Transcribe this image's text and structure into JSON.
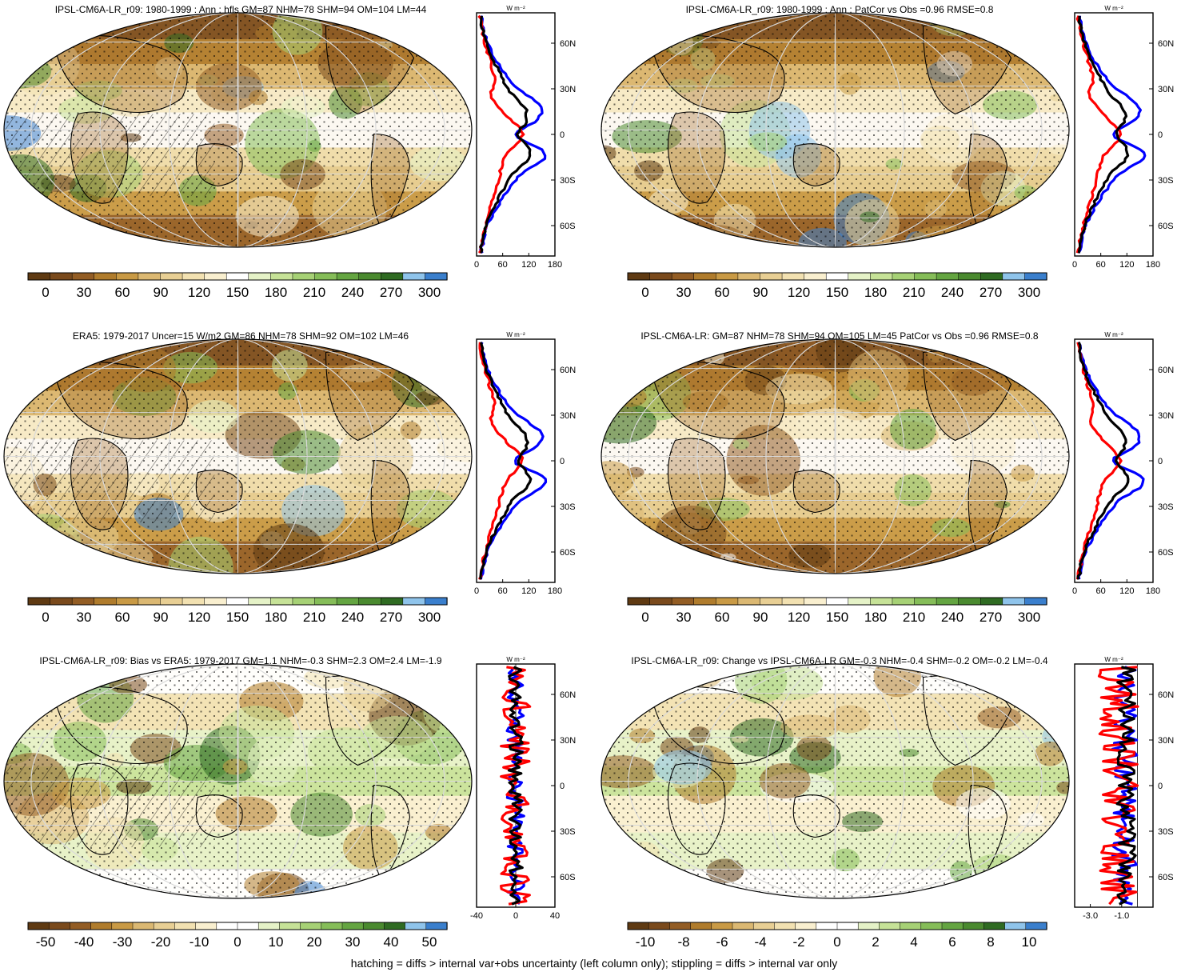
{
  "caption": "hatching = diffs > internal var+obs uncertainty (left column only); stippling = diffs > internal var only",
  "chart_data": [
    {
      "type": "map",
      "title": "IPSL-CM6A-LR_r09: 1980-1999 : Ann : hfls GM=87 NHM=78 SHM=94 OM=104 LM=44",
      "colorbar": {
        "palette": "abs",
        "ticks": [
          "0",
          "30",
          "60",
          "90",
          "120",
          "150",
          "180",
          "210",
          "240",
          "270",
          "300"
        ]
      },
      "profile": {
        "units": "W m⁻²",
        "xlim": [
          0,
          180
        ],
        "xticks": [
          "0",
          "60",
          "120",
          "180"
        ],
        "ylim": [
          -80,
          80
        ],
        "yticks": [
          "60N",
          "30N",
          "0",
          "30S",
          "60S"
        ],
        "kind": "abs"
      }
    },
    {
      "type": "map",
      "title": "IPSL-CM6A-LR_r09: 1980-1999 : Ann : PatCor vs Obs =0.96 RMSE=0.8",
      "colorbar": {
        "palette": "abs",
        "ticks": [
          "0",
          "30",
          "60",
          "90",
          "120",
          "150",
          "180",
          "210",
          "240",
          "270",
          "300"
        ]
      },
      "profile": {
        "units": "W m⁻²",
        "xlim": [
          0,
          180
        ],
        "xticks": [
          "0",
          "60",
          "120",
          "180"
        ],
        "ylim": [
          -80,
          80
        ],
        "yticks": [
          "60N",
          "30N",
          "0",
          "30S",
          "60S"
        ],
        "kind": "abs"
      }
    },
    {
      "type": "map",
      "title": "ERA5: 1979-2017 Uncer=15 W/m2 GM=86 NHM=78 SHM=92 OM=102 LM=46",
      "colorbar": {
        "palette": "abs",
        "ticks": [
          "0",
          "30",
          "60",
          "90",
          "120",
          "150",
          "180",
          "210",
          "240",
          "270",
          "300"
        ]
      },
      "profile": {
        "units": "W m⁻²",
        "xlim": [
          0,
          180
        ],
        "xticks": [
          "0",
          "60",
          "120",
          "180"
        ],
        "ylim": [
          -80,
          80
        ],
        "yticks": [
          "60N",
          "30N",
          "0",
          "30S",
          "60S"
        ],
        "kind": "abs"
      }
    },
    {
      "type": "map",
      "title": "IPSL-CM6A-LR: GM=87 NHM=78 SHM=94 OM=105 LM=45 PatCor vs Obs =0.96 RMSE=0.8",
      "colorbar": {
        "palette": "abs",
        "ticks": [
          "0",
          "30",
          "60",
          "90",
          "120",
          "150",
          "180",
          "210",
          "240",
          "270",
          "300"
        ]
      },
      "profile": {
        "units": "W m⁻²",
        "xlim": [
          0,
          180
        ],
        "xticks": [
          "0",
          "60",
          "120",
          "180"
        ],
        "ylim": [
          -80,
          80
        ],
        "yticks": [
          "60N",
          "30N",
          "0",
          "30S",
          "60S"
        ],
        "kind": "abs"
      }
    },
    {
      "type": "map",
      "title": "IPSL-CM6A-LR_r09: Bias vs ERA5: 1979-2017 GM=1.1 NHM=-0.3 SHM=2.3 OM=2.4 LM=-1.9",
      "colorbar": {
        "palette": "diff",
        "ticks": [
          "-50",
          "-40",
          "-30",
          "-20",
          "-10",
          "0",
          "10",
          "20",
          "30",
          "40",
          "50"
        ]
      },
      "profile": {
        "units": "W m⁻²",
        "xlim": [
          -40,
          40
        ],
        "xticks": [
          "-40",
          "0",
          "40"
        ],
        "ylim": [
          -80,
          80
        ],
        "yticks": [
          "60N",
          "30N",
          "0",
          "30S",
          "60S"
        ],
        "kind": "bias"
      }
    },
    {
      "type": "map",
      "title": "IPSL-CM6A-LR_r09: Change vs IPSL-CM6A-LR GM=-0.3 NHM=-0.4 SHM=-0.2 OM=-0.2 LM=-0.4",
      "colorbar": {
        "palette": "diff",
        "ticks": [
          "-10",
          "-8",
          "-6",
          "-4",
          "-2",
          "0",
          "2",
          "4",
          "6",
          "8",
          "10"
        ]
      },
      "profile": {
        "units": "W m⁻²",
        "xlim": [
          -4,
          1
        ],
        "xticks": [
          "-3.0",
          "-1.0"
        ],
        "ylim": [
          -80,
          80
        ],
        "yticks": [
          "60N",
          "30N",
          "0",
          "30S",
          "60S"
        ],
        "kind": "change"
      }
    }
  ],
  "colors": {
    "abs": [
      "#5f3a12",
      "#7a4a1c",
      "#935d24",
      "#b07c2c",
      "#c99a45",
      "#dbb872",
      "#e8cf94",
      "#f2e1b1",
      "#f9efcf",
      "#ffffff",
      "#e5f2c7",
      "#c6e297",
      "#a6d175",
      "#85bd58",
      "#64a541",
      "#4a8a2f",
      "#2f6b22",
      "#8fc4eb",
      "#3a7fcd"
    ],
    "diff": [
      "#5f3a12",
      "#7a4a1c",
      "#935d24",
      "#b07c2c",
      "#c99a45",
      "#dbb872",
      "#e8cf94",
      "#f2e1b1",
      "#f9efcf",
      "#ffffff",
      "#ffffff",
      "#e5f2c7",
      "#c6e297",
      "#a6d175",
      "#85bd58",
      "#64a541",
      "#4a8a2f",
      "#2f6b22",
      "#8fc4eb",
      "#3a7fcd"
    ],
    "model_line": "#ff0000",
    "obs_line": "#0000ff",
    "mean_line": "#000000"
  }
}
